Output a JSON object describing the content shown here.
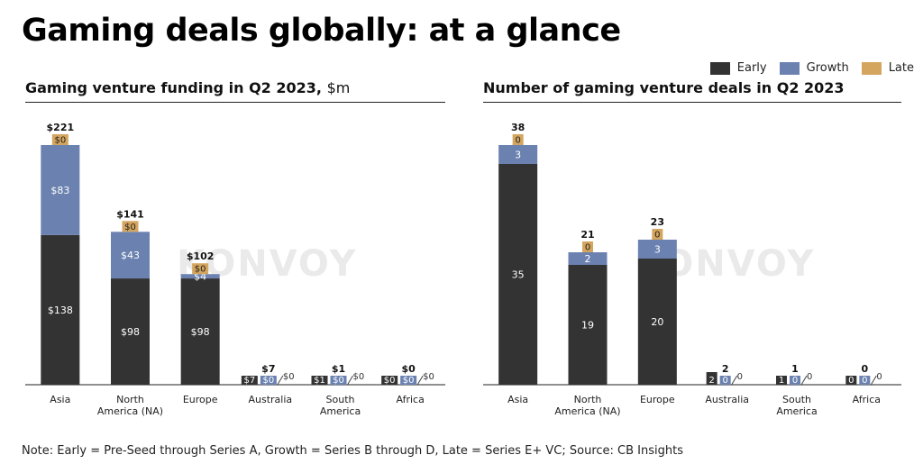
{
  "title": "Gaming deals globally: at a glance",
  "legend": [
    {
      "label": "Early",
      "color": "#333333"
    },
    {
      "label": "Growth",
      "color": "#6b82b0"
    },
    {
      "label": "Late",
      "color": "#d4a55e"
    }
  ],
  "watermark": "KONVOY",
  "note": "Note: Early = Pre-Seed through Series A, Growth = Series B through D, Late = Series E+ VC; Source: CB Insights",
  "chart_data": [
    {
      "type": "bar",
      "stacked": true,
      "title": "Gaming venture funding in Q2 2023,",
      "unit": "$m",
      "label_prefix": "$",
      "categories": [
        "Asia",
        "North America (NA)",
        "Europe",
        "Australia",
        "South America",
        "Africa"
      ],
      "category_lines": [
        [
          "Asia"
        ],
        [
          "North",
          "America (NA)"
        ],
        [
          "Europe"
        ],
        [
          "Australia"
        ],
        [
          "South",
          "America"
        ],
        [
          "Africa"
        ]
      ],
      "series": [
        {
          "name": "Early",
          "values": [
            138,
            98,
            98,
            7,
            1,
            0
          ]
        },
        {
          "name": "Growth",
          "values": [
            83,
            43,
            4,
            0,
            0,
            0
          ]
        },
        {
          "name": "Late",
          "values": [
            0,
            0,
            0,
            0,
            0,
            0
          ]
        }
      ],
      "totals": [
        221,
        141,
        102,
        7,
        1,
        0
      ],
      "ylim": [
        0,
        221
      ]
    },
    {
      "type": "bar",
      "stacked": true,
      "title": "Number of gaming venture deals in Q2 2023",
      "unit": "",
      "label_prefix": "",
      "categories": [
        "Asia",
        "North America (NA)",
        "Europe",
        "Australia",
        "South America",
        "Africa"
      ],
      "category_lines": [
        [
          "Asia"
        ],
        [
          "North",
          "America (NA)"
        ],
        [
          "Europe"
        ],
        [
          "Australia"
        ],
        [
          "South",
          "America"
        ],
        [
          "Africa"
        ]
      ],
      "series": [
        {
          "name": "Early",
          "values": [
            35,
            19,
            20,
            2,
            1,
            0
          ]
        },
        {
          "name": "Growth",
          "values": [
            3,
            2,
            3,
            0,
            0,
            0
          ]
        },
        {
          "name": "Late",
          "values": [
            0,
            0,
            0,
            0,
            0,
            0
          ]
        }
      ],
      "totals": [
        38,
        21,
        23,
        2,
        1,
        0
      ],
      "ylim": [
        0,
        38
      ]
    }
  ]
}
